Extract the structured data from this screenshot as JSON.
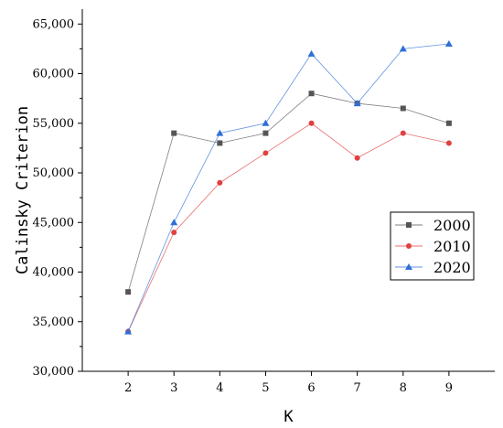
{
  "chart_data": {
    "type": "line",
    "title": "",
    "xlabel": "K",
    "ylabel": "Calinsky Criterion",
    "x": [
      2,
      3,
      4,
      5,
      6,
      7,
      8,
      9
    ],
    "x_tick_labels": [
      "2",
      "3",
      "4",
      "5",
      "6",
      "7",
      "8",
      "9"
    ],
    "xlim": [
      1,
      10
    ],
    "ylim": [
      30000,
      66500
    ],
    "y_ticks": [
      30000,
      35000,
      40000,
      45000,
      50000,
      55000,
      60000,
      65000
    ],
    "y_tick_labels": [
      "30,000",
      "35,000",
      "40,000",
      "45,000",
      "50,000",
      "55,000",
      "60,000",
      "65,000"
    ],
    "grid": false,
    "legend_position": "right",
    "series": [
      {
        "name": "2000",
        "color": "#555555",
        "marker": "square",
        "values": [
          38000,
          54000,
          53000,
          54000,
          58000,
          57000,
          56500,
          55000
        ]
      },
      {
        "name": "2010",
        "color": "#e04040",
        "marker": "circle",
        "values": [
          34000,
          44000,
          49000,
          52000,
          55000,
          51500,
          54000,
          53000
        ]
      },
      {
        "name": "2020",
        "color": "#2f6fd6",
        "marker": "triangle",
        "values": [
          34000,
          45000,
          54000,
          55000,
          62000,
          57000,
          62500,
          63000
        ]
      }
    ]
  }
}
